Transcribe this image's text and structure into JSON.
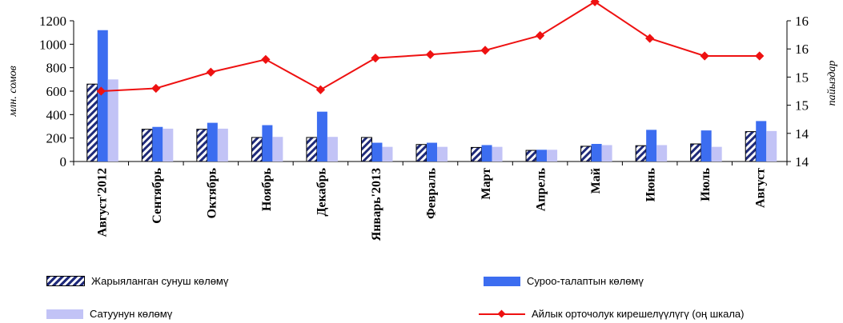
{
  "chart_data": {
    "type": "bar",
    "title": "",
    "ylabel": "млн. сомов",
    "y2label": "пайыздар",
    "ylim": [
      0,
      1200
    ],
    "y2lim": [
      14,
      16
    ],
    "yticks": [
      "0",
      "200",
      "400",
      "600",
      "800",
      "1000",
      "1200"
    ],
    "y2ticks": [
      "14",
      "14",
      "15",
      "15",
      "16",
      "16"
    ],
    "categories": [
      "Август'2012",
      "Сентябрь",
      "Октябрь",
      "Ноябрь",
      "Декабрь",
      "Январь'2013",
      "Февраль",
      "Март",
      "Апрель",
      "Май",
      "Июнь",
      "Июль",
      "Август"
    ],
    "series": [
      {
        "name": "Жарыяланган сунуш көлөмү",
        "type": "bar",
        "color": "#1f2a7a",
        "values": [
          660,
          275,
          275,
          205,
          205,
          205,
          145,
          120,
          95,
          130,
          135,
          150,
          255
        ]
      },
      {
        "name": "Суроо-талаптын көлөмү",
        "type": "bar",
        "color": "#3c6df0",
        "values": [
          1120,
          295,
          330,
          310,
          425,
          160,
          160,
          140,
          100,
          150,
          270,
          265,
          345
        ]
      },
      {
        "name": "Сатуунун көлөмү",
        "type": "bar",
        "color": "#c2c3f6",
        "values": [
          700,
          280,
          280,
          210,
          210,
          125,
          125,
          125,
          100,
          140,
          140,
          125,
          260
        ]
      },
      {
        "name": "Айлык орточолук кирешелүүлүгү (оң шкала)",
        "type": "line",
        "axis": "right",
        "color": "#ee1111",
        "values": [
          15.0,
          15.04,
          15.27,
          15.45,
          15.02,
          15.47,
          15.52,
          15.58,
          15.79,
          16.27,
          15.75,
          15.5,
          15.5
        ]
      }
    ],
    "legend": "bottom",
    "grid": false
  },
  "legend": {
    "offer": "Жарыяланган сунуш көлөмү",
    "demand": "Суроо-талаптын көлөмү",
    "sales": "Сатуунун көлөмү",
    "yield": "Айлык орточолук кирешелүүлүгү (оң шкала)"
  }
}
